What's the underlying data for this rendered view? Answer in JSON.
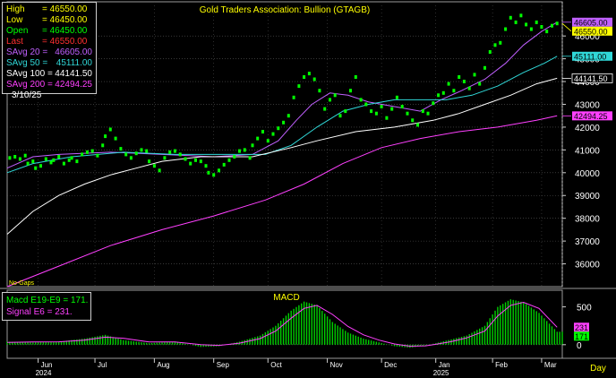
{
  "title": "Gold Traders Association: Bullion (GTAGB)",
  "no_gaps": "No-Gaps",
  "macd_title": "MACD",
  "x_unit": "Day",
  "legend": [
    {
      "key": "High",
      "value": "46550.00",
      "color": "#ffff00"
    },
    {
      "key": "Low",
      "value": "46450.00",
      "color": "#ffff00"
    },
    {
      "key": "Open",
      "value": "46450.00",
      "color": "#00ff00"
    },
    {
      "key": "Last",
      "value": "46550.00",
      "color": "#ff3030"
    },
    {
      "key": "SAvg  20 =",
      "value": "46605.00",
      "color": "#c060ff"
    },
    {
      "key": "SAvg  50 =",
      "value": "45111.00",
      "color": "#30d8d8"
    },
    {
      "key": "SAvg 100 =",
      "value": "44141.50",
      "color": "#ffffff"
    },
    {
      "key": "SAvg 200 =",
      "value": "42494.25",
      "color": "#ff40ff"
    }
  ],
  "legend_date": "3/10/25",
  "macd_legend": {
    "macd_label": "Macd  E19-E9  =  171.",
    "signal_label": "Signal  E6  =  231."
  },
  "chart_data": {
    "type": "scatter",
    "title": "Gold Traders Association: Bullion (GTAGB)",
    "ylim": [
      35000,
      47500
    ],
    "y_ticks": [
      36000,
      37000,
      38000,
      39000,
      40000,
      41000,
      42000,
      43000,
      44000,
      45000,
      46000
    ],
    "months": [
      {
        "label": "Jun",
        "year": "2024",
        "day": 12
      },
      {
        "label": "Jul",
        "day": 34
      },
      {
        "label": "Aug",
        "day": 57
      },
      {
        "label": "Sep",
        "day": 80
      },
      {
        "label": "Oct",
        "day": 101
      },
      {
        "label": "Nov",
        "day": 124
      },
      {
        "label": "Dec",
        "day": 145
      },
      {
        "label": "Jan",
        "year": "2025",
        "day": 166
      },
      {
        "label": "Feb",
        "day": 188
      },
      {
        "label": "Mar",
        "day": 207
      }
    ],
    "x_range": [
      0,
      215
    ],
    "price_points": [
      [
        1,
        40650
      ],
      [
        3,
        40700
      ],
      [
        5,
        40600
      ],
      [
        7,
        40750
      ],
      [
        8,
        40400
      ],
      [
        10,
        40500
      ],
      [
        11,
        40200
      ],
      [
        13,
        40300
      ],
      [
        15,
        40600
      ],
      [
        17,
        40450
      ],
      [
        18,
        40550
      ],
      [
        20,
        40700
      ],
      [
        22,
        40400
      ],
      [
        24,
        40550
      ],
      [
        25,
        40650
      ],
      [
        27,
        40500
      ],
      [
        29,
        40800
      ],
      [
        31,
        40900
      ],
      [
        33,
        40950
      ],
      [
        35,
        40750
      ],
      [
        37,
        41200
      ],
      [
        38,
        41600
      ],
      [
        40,
        41900
      ],
      [
        42,
        41500
      ],
      [
        44,
        41050
      ],
      [
        46,
        40800
      ],
      [
        48,
        40650
      ],
      [
        50,
        40850
      ],
      [
        52,
        41000
      ],
      [
        54,
        40950
      ],
      [
        55,
        40500
      ],
      [
        57,
        40300
      ],
      [
        59,
        40100
      ],
      [
        61,
        40650
      ],
      [
        63,
        40900
      ],
      [
        65,
        40950
      ],
      [
        67,
        40800
      ],
      [
        69,
        40600
      ],
      [
        71,
        40400
      ],
      [
        73,
        40550
      ],
      [
        75,
        40500
      ],
      [
        77,
        40300
      ],
      [
        78,
        40000
      ],
      [
        80,
        39900
      ],
      [
        82,
        40100
      ],
      [
        84,
        40350
      ],
      [
        86,
        40550
      ],
      [
        88,
        40700
      ],
      [
        90,
        40950
      ],
      [
        92,
        41000
      ],
      [
        94,
        40650
      ],
      [
        95,
        41200
      ],
      [
        97,
        41500
      ],
      [
        99,
        41800
      ],
      [
        101,
        41400
      ],
      [
        103,
        41700
      ],
      [
        105,
        41950
      ],
      [
        107,
        42200
      ],
      [
        109,
        42500
      ],
      [
        111,
        43300
      ],
      [
        113,
        43800
      ],
      [
        115,
        44200
      ],
      [
        117,
        44350
      ],
      [
        119,
        44100
      ],
      [
        121,
        43600
      ],
      [
        123,
        42800
      ],
      [
        125,
        43200
      ],
      [
        127,
        43400
      ],
      [
        129,
        42500
      ],
      [
        131,
        42700
      ],
      [
        133,
        43600
      ],
      [
        135,
        44200
      ],
      [
        137,
        43200
      ],
      [
        139,
        43000
      ],
      [
        141,
        42700
      ],
      [
        143,
        42600
      ],
      [
        145,
        42900
      ],
      [
        147,
        42400
      ],
      [
        149,
        42800
      ],
      [
        151,
        43300
      ],
      [
        153,
        42900
      ],
      [
        155,
        42600
      ],
      [
        157,
        42300
      ],
      [
        159,
        42100
      ],
      [
        161,
        42700
      ],
      [
        163,
        42600
      ],
      [
        165,
        43050
      ],
      [
        167,
        43400
      ],
      [
        169,
        43500
      ],
      [
        171,
        43900
      ],
      [
        173,
        43600
      ],
      [
        175,
        44200
      ],
      [
        177,
        44000
      ],
      [
        179,
        43700
      ],
      [
        181,
        44300
      ],
      [
        183,
        43900
      ],
      [
        185,
        44600
      ],
      [
        187,
        45300
      ],
      [
        189,
        45600
      ],
      [
        191,
        45700
      ],
      [
        193,
        46300
      ],
      [
        195,
        46800
      ],
      [
        197,
        46600
      ],
      [
        199,
        46900
      ],
      [
        201,
        46500
      ],
      [
        203,
        46300
      ],
      [
        205,
        46600
      ],
      [
        207,
        46400
      ],
      [
        209,
        46200
      ],
      [
        211,
        46450
      ],
      [
        213,
        46550
      ]
    ],
    "series": [
      {
        "name": "SAvg 20",
        "color": "#c060ff",
        "points": [
          [
            0,
            40200
          ],
          [
            10,
            40700
          ],
          [
            20,
            40800
          ],
          [
            40,
            40900
          ],
          [
            60,
            40800
          ],
          [
            80,
            40700
          ],
          [
            95,
            40800
          ],
          [
            105,
            41400
          ],
          [
            112,
            42300
          ],
          [
            118,
            43000
          ],
          [
            125,
            43500
          ],
          [
            132,
            43400
          ],
          [
            140,
            43100
          ],
          [
            150,
            42900
          ],
          [
            160,
            42700
          ],
          [
            168,
            43200
          ],
          [
            176,
            43600
          ],
          [
            185,
            44100
          ],
          [
            193,
            44800
          ],
          [
            200,
            45600
          ],
          [
            207,
            46200
          ],
          [
            213,
            46605
          ]
        ]
      },
      {
        "name": "SAvg 50",
        "color": "#30d8d8",
        "points": [
          [
            0,
            40000
          ],
          [
            10,
            40400
          ],
          [
            25,
            40700
          ],
          [
            45,
            40900
          ],
          [
            65,
            40800
          ],
          [
            85,
            40800
          ],
          [
            100,
            40800
          ],
          [
            110,
            41200
          ],
          [
            120,
            42000
          ],
          [
            130,
            42700
          ],
          [
            140,
            43000
          ],
          [
            150,
            43200
          ],
          [
            160,
            43200
          ],
          [
            170,
            43200
          ],
          [
            180,
            43400
          ],
          [
            190,
            43800
          ],
          [
            200,
            44400
          ],
          [
            208,
            44800
          ],
          [
            213,
            45111
          ]
        ]
      },
      {
        "name": "SAvg 100",
        "color": "#ffffff",
        "points": [
          [
            0,
            37300
          ],
          [
            10,
            38300
          ],
          [
            20,
            39000
          ],
          [
            30,
            39500
          ],
          [
            40,
            39900
          ],
          [
            50,
            40200
          ],
          [
            60,
            40500
          ],
          [
            75,
            40700
          ],
          [
            95,
            40700
          ],
          [
            110,
            41100
          ],
          [
            120,
            41400
          ],
          [
            135,
            41800
          ],
          [
            150,
            42000
          ],
          [
            165,
            42300
          ],
          [
            175,
            42600
          ],
          [
            185,
            43000
          ],
          [
            195,
            43400
          ],
          [
            205,
            43900
          ],
          [
            213,
            44141.5
          ]
        ]
      },
      {
        "name": "SAvg 200",
        "color": "#ff40ff",
        "points": [
          [
            0,
            35000
          ],
          [
            20,
            35900
          ],
          [
            40,
            36800
          ],
          [
            60,
            37500
          ],
          [
            80,
            38100
          ],
          [
            100,
            38800
          ],
          [
            115,
            39500
          ],
          [
            130,
            40400
          ],
          [
            145,
            41100
          ],
          [
            160,
            41500
          ],
          [
            175,
            41800
          ],
          [
            190,
            42000
          ],
          [
            205,
            42300
          ],
          [
            213,
            42494.25
          ]
        ]
      }
    ],
    "price_labels": [
      {
        "value": 46605,
        "text": "46605.00",
        "color": "#c060ff"
      },
      {
        "value": 46550,
        "text": "46550.00",
        "color": "#ffff00"
      },
      {
        "value": 45111,
        "text": "45111.00",
        "color": "#30d8d8"
      },
      {
        "value": 44141.5,
        "text": "44141.50",
        "color": "#ffffff"
      },
      {
        "value": 42494.25,
        "text": "42494.25",
        "color": "#ff40ff"
      }
    ],
    "macd": {
      "ylim": [
        -180,
        720
      ],
      "y_ticks": [
        0,
        500
      ],
      "hist_color": "#00d000",
      "signal_color": "#ff40ff",
      "macd_value": 171,
      "signal_value": 231,
      "macd_points": [
        [
          0,
          40
        ],
        [
          10,
          30
        ],
        [
          20,
          40
        ],
        [
          30,
          80
        ],
        [
          38,
          130
        ],
        [
          45,
          60
        ],
        [
          55,
          20
        ],
        [
          65,
          40
        ],
        [
          75,
          -30
        ],
        [
          82,
          -20
        ],
        [
          90,
          40
        ],
        [
          98,
          120
        ],
        [
          104,
          250
        ],
        [
          110,
          450
        ],
        [
          115,
          570
        ],
        [
          120,
          520
        ],
        [
          126,
          300
        ],
        [
          132,
          160
        ],
        [
          138,
          80
        ],
        [
          144,
          30
        ],
        [
          150,
          -20
        ],
        [
          156,
          -40
        ],
        [
          162,
          -10
        ],
        [
          166,
          20
        ],
        [
          172,
          70
        ],
        [
          178,
          120
        ],
        [
          185,
          250
        ],
        [
          190,
          500
        ],
        [
          195,
          600
        ],
        [
          200,
          560
        ],
        [
          206,
          420
        ],
        [
          213,
          171
        ]
      ],
      "signal_points": [
        [
          0,
          30
        ],
        [
          10,
          35
        ],
        [
          20,
          38
        ],
        [
          30,
          60
        ],
        [
          38,
          100
        ],
        [
          45,
          85
        ],
        [
          55,
          35
        ],
        [
          65,
          35
        ],
        [
          75,
          0
        ],
        [
          82,
          -10
        ],
        [
          90,
          20
        ],
        [
          98,
          80
        ],
        [
          104,
          180
        ],
        [
          110,
          350
        ],
        [
          115,
          480
        ],
        [
          120,
          520
        ],
        [
          126,
          400
        ],
        [
          132,
          240
        ],
        [
          138,
          130
        ],
        [
          144,
          60
        ],
        [
          150,
          10
        ],
        [
          156,
          -20
        ],
        [
          162,
          -15
        ],
        [
          166,
          5
        ],
        [
          172,
          40
        ],
        [
          178,
          90
        ],
        [
          185,
          180
        ],
        [
          190,
          380
        ],
        [
          195,
          520
        ],
        [
          200,
          560
        ],
        [
          206,
          480
        ],
        [
          213,
          231
        ]
      ],
      "y_labels": [
        {
          "value": 231,
          "text": "231",
          "color": "#ff40ff"
        },
        {
          "value": 171,
          "text": "171",
          "color": "#00ff00"
        }
      ]
    }
  }
}
